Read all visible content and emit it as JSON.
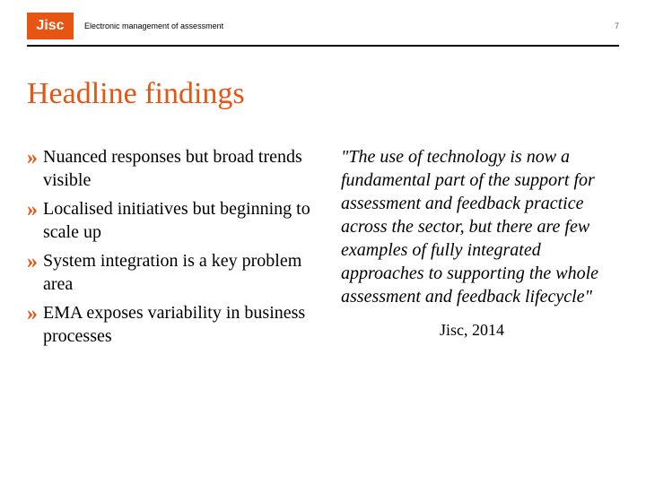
{
  "colors": {
    "orange": "#e85412",
    "black": "#000000",
    "white": "#ffffff",
    "gray": "#666666"
  },
  "logo": {
    "text": "Jisc",
    "bg": "#e85412",
    "fg": "#ffffff",
    "fontsize": 16,
    "fontweight": 600
  },
  "header": {
    "text": "Electronic management of assessment",
    "fontsize": 9,
    "color": "#000000"
  },
  "page_number": {
    "value": "7",
    "fontsize": 9,
    "color": "#666666"
  },
  "divider": {
    "color": "#000000"
  },
  "title": {
    "text": "Headline findings",
    "fontsize": 34,
    "color": "#e85412"
  },
  "bullets": {
    "mark": "»",
    "mark_color": "#e85412",
    "mark_fontsize": 24,
    "text_fontsize": 20,
    "text_color": "#000000",
    "line_height": 1.3,
    "items": [
      "Nuanced responses but broad trends visible",
      "Localised initiatives but beginning to scale up",
      "System integration is a key problem area",
      "EMA exposes variability in business processes"
    ]
  },
  "quote": {
    "text": "\"The use of technology is now a fundamental part of the support for assessment and feedback practice across the sector, but there are few examples of fully integrated approaches to supporting the whole assessment and feedback lifecycle\"",
    "fontsize": 20,
    "color": "#000000",
    "line_height": 1.3
  },
  "attribution": {
    "text": "Jisc, 2014",
    "fontsize": 18,
    "color": "#000000"
  }
}
